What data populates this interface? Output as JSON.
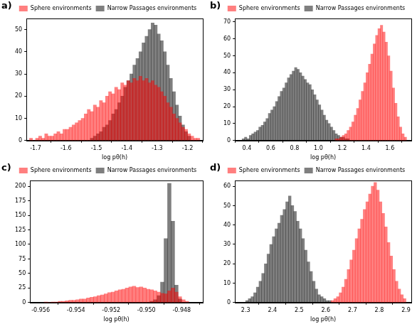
{
  "chart_data": [
    {
      "type": "histogram",
      "title": "a)",
      "x_label": "log pθ(h)",
      "legend": "top",
      "grid": false,
      "xlim": [
        -1.73,
        -1.15
      ],
      "xticks": [
        -1.7,
        -1.6,
        -1.5,
        -1.4,
        -1.3,
        -1.2
      ],
      "ylim": [
        0,
        55
      ],
      "yticks": [
        0,
        10,
        20,
        30,
        40,
        50
      ],
      "series": [
        {
          "name": "Sphere environments",
          "color": "#ff0000",
          "bins": [
            -1.72,
            -1.71,
            -1.7,
            -1.69,
            -1.68,
            -1.67,
            -1.66,
            -1.65,
            -1.64,
            -1.63,
            -1.62,
            -1.61,
            -1.6,
            -1.59,
            -1.58,
            -1.57,
            -1.56,
            -1.55,
            -1.54,
            -1.53,
            -1.52,
            -1.51,
            -1.5,
            -1.49,
            -1.48,
            -1.47,
            -1.46,
            -1.45,
            -1.44,
            -1.43,
            -1.42,
            -1.41,
            -1.4,
            -1.39,
            -1.38,
            -1.37,
            -1.36,
            -1.35,
            -1.34,
            -1.33,
            -1.32,
            -1.31,
            -1.3,
            -1.29,
            -1.28,
            -1.27,
            -1.26,
            -1.25,
            -1.24,
            -1.23,
            -1.22,
            -1.21,
            -1.2,
            -1.19,
            -1.18,
            -1.17,
            -1.16
          ],
          "values": [
            1,
            0,
            1,
            2,
            1,
            3,
            2,
            2,
            3,
            4,
            3,
            5,
            5,
            6,
            7,
            8,
            9,
            10,
            12,
            14,
            13,
            16,
            15,
            18,
            17,
            20,
            22,
            21,
            24,
            23,
            26,
            25,
            27,
            26,
            28,
            27,
            29,
            27,
            28,
            26,
            27,
            25,
            24,
            22,
            20,
            17,
            15,
            12,
            10,
            8,
            6,
            5,
            3,
            2,
            1,
            1
          ]
        },
        {
          "name": "Narrow Passages environments",
          "color": "#000000",
          "bins": [
            -1.52,
            -1.51,
            -1.5,
            -1.49,
            -1.48,
            -1.47,
            -1.46,
            -1.45,
            -1.44,
            -1.43,
            -1.42,
            -1.41,
            -1.4,
            -1.39,
            -1.38,
            -1.37,
            -1.36,
            -1.35,
            -1.34,
            -1.33,
            -1.32,
            -1.31,
            -1.3,
            -1.29,
            -1.28,
            -1.27,
            -1.26,
            -1.25,
            -1.24,
            -1.23,
            -1.22,
            -1.21,
            -1.2,
            -1.19
          ],
          "values": [
            1,
            2,
            3,
            4,
            6,
            7,
            9,
            12,
            14,
            17,
            20,
            24,
            27,
            30,
            34,
            37,
            40,
            44,
            47,
            50,
            53,
            52,
            48,
            45,
            40,
            34,
            28,
            22,
            16,
            11,
            7,
            4,
            2
          ]
        }
      ]
    },
    {
      "type": "histogram",
      "title": "b)",
      "x_label": "log pθ(h)",
      "legend": "top",
      "grid": false,
      "xlim": [
        0.3,
        1.78
      ],
      "xticks": [
        0.4,
        0.6,
        0.8,
        {
          "value": 1,
          "label": "1.0"
        },
        1.2,
        1.4,
        1.6
      ],
      "ylim": [
        0,
        72
      ],
      "yticks": [
        0,
        10,
        20,
        30,
        40,
        50,
        60,
        70
      ],
      "series": [
        {
          "name": "Sphere environments",
          "color": "#ff0000",
          "bins": [
            1.14,
            1.16,
            1.18,
            1.2,
            1.22,
            1.24,
            1.26,
            1.28,
            1.3,
            1.32,
            1.34,
            1.36,
            1.38,
            1.4,
            1.42,
            1.44,
            1.46,
            1.48,
            1.5,
            1.52,
            1.54,
            1.56,
            1.58,
            1.6,
            1.62,
            1.64,
            1.66,
            1.68,
            1.7,
            1.72,
            1.74
          ],
          "values": [
            1,
            1,
            2,
            3,
            4,
            6,
            8,
            11,
            15,
            19,
            24,
            29,
            34,
            40,
            45,
            51,
            57,
            62,
            66,
            68,
            64,
            58,
            50,
            41,
            31,
            22,
            14,
            8,
            4,
            2
          ]
        },
        {
          "name": "Narrow Passages environments",
          "color": "#000000",
          "bins": [
            0.36,
            0.38,
            0.4,
            0.42,
            0.44,
            0.46,
            0.48,
            0.5,
            0.52,
            0.54,
            0.56,
            0.58,
            0.6,
            0.62,
            0.64,
            0.66,
            0.68,
            0.7,
            0.72,
            0.74,
            0.76,
            0.78,
            0.8,
            0.82,
            0.84,
            0.86,
            0.88,
            0.9,
            0.92,
            0.94,
            0.96,
            0.98,
            1,
            1.02,
            1.04,
            1.06,
            1.08,
            1.1,
            1.12,
            1.14,
            1.16,
            1.18,
            1.2,
            1.22,
            1.24,
            1.26
          ],
          "values": [
            1,
            2,
            1,
            3,
            4,
            5,
            6,
            8,
            9,
            11,
            13,
            16,
            18,
            20,
            23,
            26,
            29,
            31,
            34,
            37,
            39,
            41,
            43,
            42,
            40,
            38,
            36,
            34,
            33,
            30,
            27,
            24,
            21,
            18,
            15,
            12,
            10,
            8,
            6,
            4,
            3,
            2,
            2,
            1,
            1
          ]
        }
      ]
    },
    {
      "type": "histogram",
      "title": "c)",
      "x_label": "log pθ(h)",
      "legend": "top",
      "grid": false,
      "xlim": [
        -0.9566,
        -0.9468
      ],
      "xticks": [
        -0.956,
        -0.954,
        -0.952,
        {
          "value": -0.95,
          "label": "-0.950"
        },
        -0.948
      ],
      "ylim": [
        0,
        210
      ],
      "yticks": [
        0,
        25,
        50,
        75,
        100,
        125,
        150,
        175,
        200
      ],
      "series": [
        {
          "name": "Sphere environments",
          "color": "#ff0000",
          "bins": [
            -0.9558,
            -0.9556,
            -0.9554,
            -0.9552,
            -0.955,
            -0.9548,
            -0.9546,
            -0.9544,
            -0.9542,
            -0.954,
            -0.9538,
            -0.9536,
            -0.9534,
            -0.9532,
            -0.953,
            -0.9528,
            -0.9526,
            -0.9524,
            -0.9522,
            -0.952,
            -0.9518,
            -0.9516,
            -0.9514,
            -0.9512,
            -0.951,
            -0.9508,
            -0.9506,
            -0.9504,
            -0.9502,
            -0.95,
            -0.9498,
            -0.9496,
            -0.9494,
            -0.9492,
            -0.949,
            -0.9488,
            -0.9486,
            -0.9484,
            -0.9482,
            -0.948,
            -0.9478,
            -0.9476
          ],
          "values": [
            1,
            0,
            1,
            1,
            2,
            2,
            3,
            4,
            4,
            5,
            6,
            6,
            8,
            9,
            10,
            12,
            13,
            15,
            17,
            18,
            20,
            22,
            23,
            25,
            27,
            28,
            26,
            27,
            25,
            23,
            22,
            20,
            18,
            16,
            15,
            20,
            25,
            18,
            10,
            5,
            2
          ]
        },
        {
          "name": "Narrow Passages environments",
          "color": "#000000",
          "bins": [
            -0.9498,
            -0.9496,
            -0.9494,
            -0.9492,
            -0.949,
            -0.9488,
            -0.9486,
            -0.9484,
            -0.9482,
            -0.948
          ],
          "values": [
            2,
            5,
            12,
            35,
            110,
            205,
            140,
            30,
            6
          ]
        }
      ]
    },
    {
      "type": "histogram",
      "title": "d)",
      "x_label": "log pθ(h)",
      "legend": "top",
      "grid": false,
      "xlim": [
        2.26,
        2.92
      ],
      "xticks": [
        2.3,
        2.4,
        2.5,
        2.6,
        2.7,
        2.8,
        2.9
      ],
      "ylim": [
        0,
        63
      ],
      "yticks": [
        0,
        10,
        20,
        30,
        40,
        50,
        60
      ],
      "series": [
        {
          "name": "Sphere environments",
          "color": "#ff0000",
          "bins": [
            2.62,
            2.63,
            2.64,
            2.65,
            2.66,
            2.67,
            2.68,
            2.69,
            2.7,
            2.71,
            2.72,
            2.73,
            2.74,
            2.75,
            2.76,
            2.77,
            2.78,
            2.79,
            2.8,
            2.81,
            2.82,
            2.83,
            2.84,
            2.85,
            2.86,
            2.87,
            2.88,
            2.89,
            2.9
          ],
          "values": [
            1,
            2,
            3,
            5,
            8,
            12,
            17,
            22,
            27,
            33,
            38,
            43,
            48,
            52,
            56,
            60,
            62,
            58,
            52,
            46,
            39,
            31,
            24,
            17,
            11,
            7,
            4,
            2
          ]
        },
        {
          "name": "Narrow Passages environments",
          "color": "#000000",
          "bins": [
            2.3,
            2.31,
            2.32,
            2.33,
            2.34,
            2.35,
            2.36,
            2.37,
            2.38,
            2.39,
            2.4,
            2.41,
            2.42,
            2.43,
            2.44,
            2.45,
            2.46,
            2.47,
            2.48,
            2.49,
            2.5,
            2.51,
            2.52,
            2.53,
            2.54,
            2.55,
            2.56,
            2.57,
            2.58,
            2.59,
            2.6,
            2.61,
            2.62
          ],
          "values": [
            1,
            2,
            3,
            5,
            8,
            11,
            15,
            20,
            25,
            30,
            34,
            38,
            41,
            45,
            48,
            52,
            55,
            50,
            47,
            42,
            38,
            33,
            27,
            21,
            16,
            11,
            7,
            4,
            3,
            2,
            1,
            1
          ]
        }
      ]
    }
  ]
}
